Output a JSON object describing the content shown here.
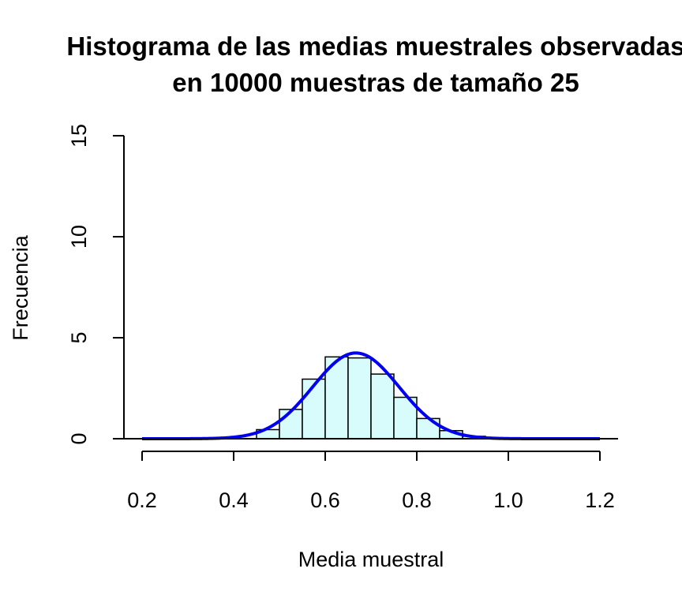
{
  "chart_data": {
    "type": "bar",
    "title_lines": [
      "Histograma de las medias muestrales observadas",
      "en 10000 muestras de tamaño 25"
    ],
    "xlabel": "Media muestral",
    "ylabel": "Frecuencia",
    "xlim": [
      0.2,
      1.2
    ],
    "ylim": [
      0,
      15
    ],
    "x_ticks": [
      "0.2",
      "0.4",
      "0.6",
      "0.8",
      "1.0",
      "1.2"
    ],
    "y_ticks": [
      "0",
      "5",
      "10",
      "15"
    ],
    "bin_edges": [
      0.45,
      0.5,
      0.55,
      0.6,
      0.65,
      0.7,
      0.75,
      0.8,
      0.85,
      0.9,
      0.95
    ],
    "values": [
      0.45,
      1.45,
      2.95,
      4.05,
      4.0,
      3.2,
      2.05,
      1.0,
      0.4,
      0.12
    ],
    "bar_fill": "#d8fcfc",
    "bar_stroke": "#000000",
    "density_curve": {
      "type": "normal",
      "mean": 0.667,
      "sd": 0.094,
      "x_range": [
        0.2,
        1.2
      ],
      "color": "#0000ee"
    },
    "grid": false,
    "legend": "none"
  }
}
